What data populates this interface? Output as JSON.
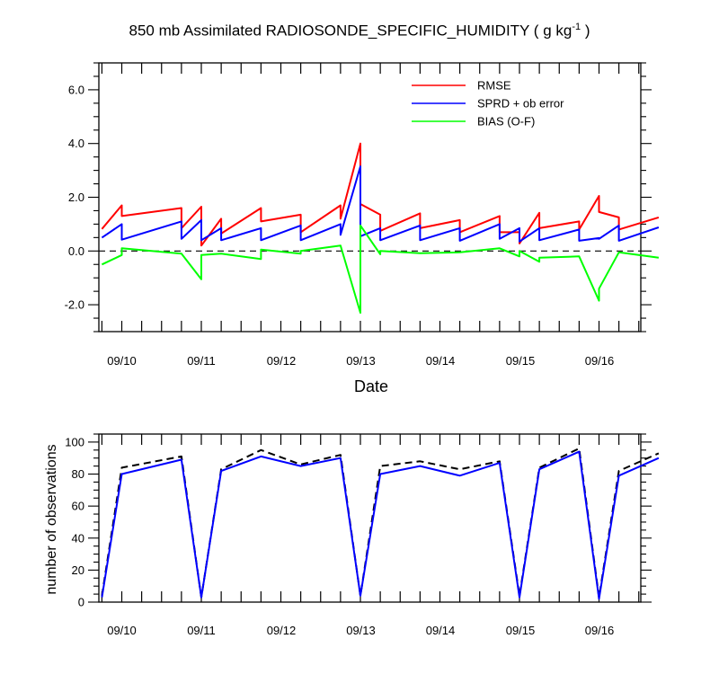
{
  "title": {
    "prefix": "850 mb Assimilated RADIOSONDE_SPECIFIC_HUMIDITY ( g kg",
    "superscript": "-1",
    "suffix": " )"
  },
  "chart_data": [
    {
      "type": "line",
      "xlabel": "Date",
      "ylabel": "",
      "x_tick_labels": [
        "09/10",
        "09/11",
        "09/12",
        "09/13",
        "09/14",
        "09/15",
        "09/16"
      ],
      "ylim": [
        -3,
        7
      ],
      "yticks": [
        -2,
        0,
        2,
        4,
        6
      ],
      "ytick_labels": [
        "-2.0",
        "0.0",
        "2.0",
        "4.0",
        "6.0"
      ],
      "zero_line": "dashed",
      "legend_position": "top-right",
      "series": [
        {
          "name": "RMSE",
          "color": "#ff0000",
          "points": [
            [
              -0.25,
              0.82
            ],
            [
              0,
              1.7
            ],
            [
              0,
              1.3
            ],
            [
              0.75,
              1.6
            ],
            [
              0.75,
              0.85
            ],
            [
              1,
              1.65
            ],
            [
              1,
              0.2
            ],
            [
              1.25,
              1.2
            ],
            [
              1.25,
              0.65
            ],
            [
              1.75,
              1.6
            ],
            [
              1.75,
              1.1
            ],
            [
              2.25,
              1.35
            ],
            [
              2.25,
              0.7
            ],
            [
              2.75,
              1.7
            ],
            [
              2.75,
              1.2
            ],
            [
              3,
              4.0
            ],
            [
              3,
              1.75
            ],
            [
              3.25,
              1.35
            ],
            [
              3.25,
              0.75
            ],
            [
              3.75,
              1.4
            ],
            [
              3.75,
              0.85
            ],
            [
              4.25,
              1.15
            ],
            [
              4.25,
              0.7
            ],
            [
              4.75,
              1.3
            ],
            [
              4.75,
              0.7
            ],
            [
              5,
              0.7
            ],
            [
              5,
              0.28
            ],
            [
              5.25,
              1.42
            ],
            [
              5.25,
              0.85
            ],
            [
              5.75,
              1.1
            ],
            [
              5.75,
              0.8
            ],
            [
              6,
              2.05
            ],
            [
              6,
              1.45
            ],
            [
              6.25,
              1.25
            ],
            [
              6.25,
              0.8
            ],
            [
              6.75,
              1.25
            ]
          ]
        },
        {
          "name": "SPRD + ob error",
          "color": "#0000ff",
          "points": [
            [
              -0.25,
              0.5
            ],
            [
              0,
              1.0
            ],
            [
              0,
              0.42
            ],
            [
              0.75,
              1.1
            ],
            [
              0.75,
              0.45
            ],
            [
              1,
              1.15
            ],
            [
              1,
              0.4
            ],
            [
              1.25,
              0.85
            ],
            [
              1.25,
              0.4
            ],
            [
              1.75,
              0.85
            ],
            [
              1.75,
              0.4
            ],
            [
              2.25,
              0.95
            ],
            [
              2.25,
              0.4
            ],
            [
              2.75,
              1.0
            ],
            [
              2.75,
              0.6
            ],
            [
              3,
              3.15
            ],
            [
              3,
              0.55
            ],
            [
              3.25,
              0.85
            ],
            [
              3.25,
              0.4
            ],
            [
              3.75,
              0.95
            ],
            [
              3.75,
              0.4
            ],
            [
              4.25,
              0.85
            ],
            [
              4.25,
              0.38
            ],
            [
              4.75,
              1.0
            ],
            [
              4.75,
              0.45
            ],
            [
              5,
              0.85
            ],
            [
              5,
              0.35
            ],
            [
              5.25,
              0.85
            ],
            [
              5.25,
              0.4
            ],
            [
              5.75,
              0.8
            ],
            [
              5.75,
              0.38
            ],
            [
              6,
              0.48
            ],
            [
              6,
              0.45
            ],
            [
              6.25,
              0.95
            ],
            [
              6.25,
              0.38
            ],
            [
              6.75,
              0.88
            ]
          ]
        },
        {
          "name": "BIAS (O-F)",
          "color": "#00ff00",
          "points": [
            [
              -0.25,
              -0.5
            ],
            [
              0,
              -0.15
            ],
            [
              0,
              0.1
            ],
            [
              0.75,
              -0.1
            ],
            [
              1,
              -1.05
            ],
            [
              1,
              -0.15
            ],
            [
              1.25,
              -0.1
            ],
            [
              1.75,
              -0.3
            ],
            [
              1.75,
              0.05
            ],
            [
              2.25,
              -0.1
            ],
            [
              2.25,
              0.0
            ],
            [
              2.75,
              0.2
            ],
            [
              3,
              -2.3
            ],
            [
              3,
              0.95
            ],
            [
              3.25,
              -0.12
            ],
            [
              3.25,
              0.0
            ],
            [
              3.75,
              -0.08
            ],
            [
              4.25,
              -0.05
            ],
            [
              4.75,
              0.1
            ],
            [
              5,
              -0.2
            ],
            [
              5,
              0.0
            ],
            [
              5.25,
              -0.4
            ],
            [
              5.25,
              -0.25
            ],
            [
              5.75,
              -0.2
            ],
            [
              6,
              -1.85
            ],
            [
              6,
              -1.4
            ],
            [
              6.25,
              -0.05
            ],
            [
              6.75,
              -0.25
            ]
          ]
        }
      ]
    },
    {
      "type": "line",
      "xlabel": "",
      "ylabel": "number of observations",
      "x_tick_labels": [
        "09/10",
        "09/11",
        "09/12",
        "09/13",
        "09/14",
        "09/15",
        "09/16"
      ],
      "ylim": [
        0,
        105
      ],
      "yticks": [
        0,
        20,
        40,
        60,
        80,
        100
      ],
      "ytick_labels": [
        "0",
        "20",
        "40",
        "60",
        "80",
        "100"
      ],
      "series": [
        {
          "color": "#000000",
          "style": "dashed",
          "points": [
            [
              -0.25,
              4
            ],
            [
              0,
              84
            ],
            [
              0.75,
              91
            ],
            [
              1,
              3
            ],
            [
              1.25,
              83
            ],
            [
              1.75,
              95
            ],
            [
              2.25,
              86
            ],
            [
              2.75,
              92
            ],
            [
              3,
              4
            ],
            [
              3.25,
              85
            ],
            [
              3.75,
              88
            ],
            [
              4.25,
              83
            ],
            [
              4.75,
              88
            ],
            [
              5,
              4
            ],
            [
              5.25,
              84
            ],
            [
              5.75,
              96
            ],
            [
              6,
              3
            ],
            [
              6.25,
              82
            ],
            [
              6.75,
              93
            ]
          ]
        },
        {
          "color": "#0000ff",
          "style": "solid",
          "points": [
            [
              -0.25,
              3
            ],
            [
              0,
              80
            ],
            [
              0.75,
              89
            ],
            [
              1,
              3
            ],
            [
              1.25,
              82
            ],
            [
              1.75,
              91
            ],
            [
              2.25,
              85
            ],
            [
              2.75,
              90
            ],
            [
              3,
              4
            ],
            [
              3.25,
              80
            ],
            [
              3.75,
              85
            ],
            [
              4.25,
              79
            ],
            [
              4.75,
              87
            ],
            [
              5,
              3
            ],
            [
              5.25,
              83
            ],
            [
              5.75,
              94
            ],
            [
              6,
              2
            ],
            [
              6.25,
              79
            ],
            [
              6.75,
              90
            ]
          ]
        }
      ]
    }
  ]
}
